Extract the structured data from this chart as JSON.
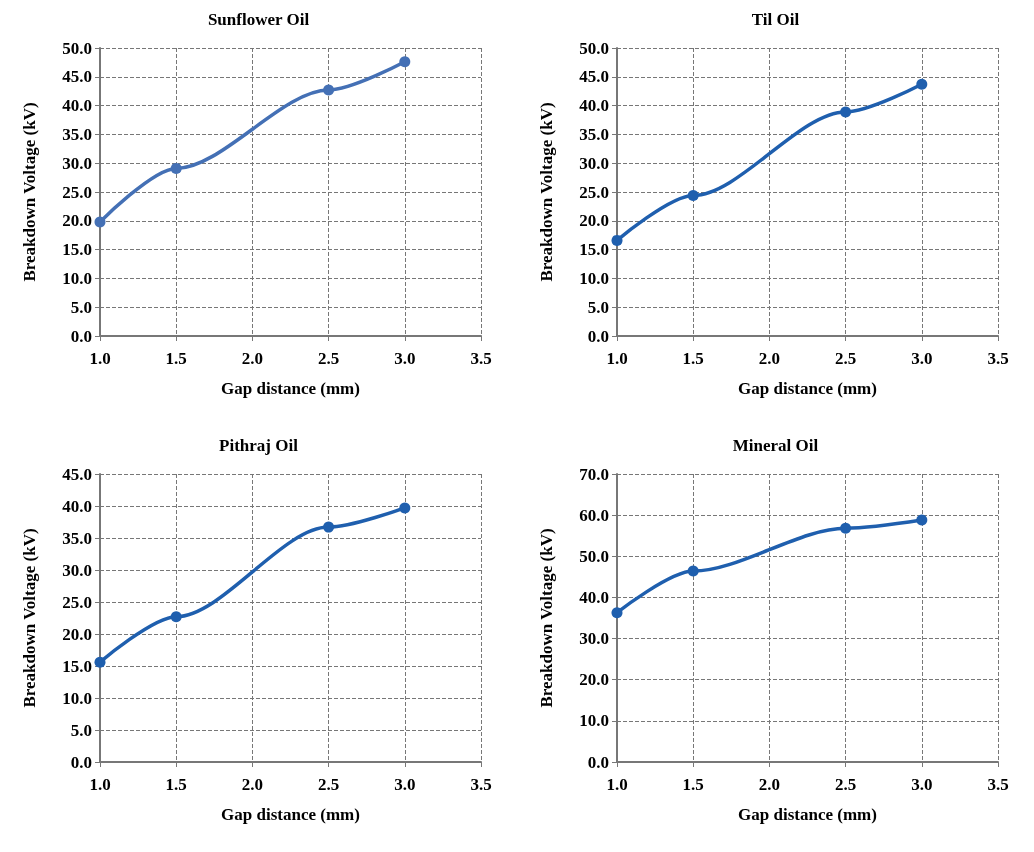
{
  "chart_data": [
    {
      "type": "line",
      "title": "Sunflower Oil",
      "xlabel": "Gap distance (mm)",
      "ylabel": "Breakdown Voltage (kV)",
      "x": [
        1.0,
        1.5,
        2.5,
        3.0
      ],
      "series": [
        {
          "color": "#4470b5",
          "values": [
            19.8,
            29.1,
            42.7,
            47.6
          ]
        }
      ],
      "xlim": [
        1.0,
        3.5
      ],
      "xticks": [
        {
          "value": 1,
          "label": "1.0"
        },
        1.5,
        {
          "value": 2,
          "label": "2.0"
        },
        2.5,
        {
          "value": 3,
          "label": "3.0"
        },
        3.5
      ],
      "ylim": [
        0,
        50
      ],
      "yticks": [
        {
          "value": 0,
          "label": "0.0"
        },
        {
          "value": 5,
          "label": "5.0"
        },
        {
          "value": 10,
          "label": "10.0"
        },
        {
          "value": 15,
          "label": "15.0"
        },
        {
          "value": 20,
          "label": "20.0"
        },
        {
          "value": 25,
          "label": "25.0"
        },
        {
          "value": 30,
          "label": "30.0"
        },
        {
          "value": 35,
          "label": "35.0"
        },
        {
          "value": 40,
          "label": "40.0"
        },
        {
          "value": 45,
          "label": "45.0"
        },
        {
          "value": 50,
          "label": "50.0"
        }
      ],
      "grid": true,
      "marker": "circle",
      "line_style": "solid"
    },
    {
      "type": "line",
      "title": "Til Oil",
      "xlabel": "Gap distance (mm)",
      "ylabel": "Breakdown Voltage (kV)",
      "x": [
        1.0,
        1.5,
        2.5,
        3.0
      ],
      "series": [
        {
          "color": "#1f5fae",
          "values": [
            16.6,
            24.4,
            38.9,
            43.7
          ]
        }
      ],
      "xlim": [
        1.0,
        3.5
      ],
      "xticks": [
        {
          "value": 1,
          "label": "1.0"
        },
        1.5,
        {
          "value": 2,
          "label": "2.0"
        },
        2.5,
        {
          "value": 3,
          "label": "3.0"
        },
        3.5
      ],
      "ylim": [
        0,
        50
      ],
      "yticks": [
        {
          "value": 0,
          "label": "0.0"
        },
        {
          "value": 5,
          "label": "5.0"
        },
        {
          "value": 10,
          "label": "10.0"
        },
        {
          "value": 15,
          "label": "15.0"
        },
        {
          "value": 20,
          "label": "20.0"
        },
        {
          "value": 25,
          "label": "25.0"
        },
        {
          "value": 30,
          "label": "30.0"
        },
        {
          "value": 35,
          "label": "35.0"
        },
        {
          "value": 40,
          "label": "40.0"
        },
        {
          "value": 45,
          "label": "45.0"
        },
        {
          "value": 50,
          "label": "50.0"
        }
      ],
      "grid": true,
      "marker": "circle",
      "line_style": "solid"
    },
    {
      "type": "line",
      "title": "Pithraj Oil",
      "xlabel": "Gap distance (mm)",
      "ylabel": "Breakdown Voltage (kV)",
      "x": [
        1.0,
        1.5,
        2.5,
        3.0
      ],
      "series": [
        {
          "color": "#1f5fae",
          "values": [
            15.6,
            22.7,
            36.7,
            39.7
          ]
        }
      ],
      "xlim": [
        1.0,
        3.5
      ],
      "xticks": [
        {
          "value": 1,
          "label": "1.0"
        },
        1.5,
        {
          "value": 2,
          "label": "2.0"
        },
        2.5,
        {
          "value": 3,
          "label": "3.0"
        },
        3.5
      ],
      "ylim": [
        0,
        45
      ],
      "yticks": [
        {
          "value": 0,
          "label": "0.0"
        },
        {
          "value": 5,
          "label": "5.0"
        },
        {
          "value": 10,
          "label": "10.0"
        },
        {
          "value": 15,
          "label": "15.0"
        },
        {
          "value": 20,
          "label": "20.0"
        },
        {
          "value": 25,
          "label": "25.0"
        },
        {
          "value": 30,
          "label": "30.0"
        },
        {
          "value": 35,
          "label": "35.0"
        },
        {
          "value": 40,
          "label": "40.0"
        },
        {
          "value": 45,
          "label": "45.0"
        }
      ],
      "grid": true,
      "marker": "circle",
      "line_style": "solid"
    },
    {
      "type": "line",
      "title": "Mineral Oil",
      "xlabel": "Gap distance (mm)",
      "ylabel": "Breakdown Voltage (kV)",
      "x": [
        1.0,
        1.5,
        2.5,
        3.0
      ],
      "series": [
        {
          "color": "#1f5fae",
          "values": [
            36.3,
            46.4,
            56.8,
            58.8
          ]
        }
      ],
      "xlim": [
        1.0,
        3.5
      ],
      "xticks": [
        {
          "value": 1,
          "label": "1.0"
        },
        1.5,
        {
          "value": 2,
          "label": "2.0"
        },
        2.5,
        {
          "value": 3,
          "label": "3.0"
        },
        3.5
      ],
      "ylim": [
        0,
        70
      ],
      "yticks": [
        {
          "value": 0,
          "label": "0.0"
        },
        {
          "value": 10,
          "label": "10.0"
        },
        {
          "value": 20,
          "label": "20.0"
        },
        {
          "value": 30,
          "label": "30.0"
        },
        {
          "value": 40,
          "label": "40.0"
        },
        {
          "value": 50,
          "label": "50.0"
        },
        {
          "value": 60,
          "label": "60.0"
        },
        {
          "value": 70,
          "label": "70.0"
        }
      ],
      "grid": true,
      "marker": "circle",
      "line_style": "solid"
    }
  ]
}
